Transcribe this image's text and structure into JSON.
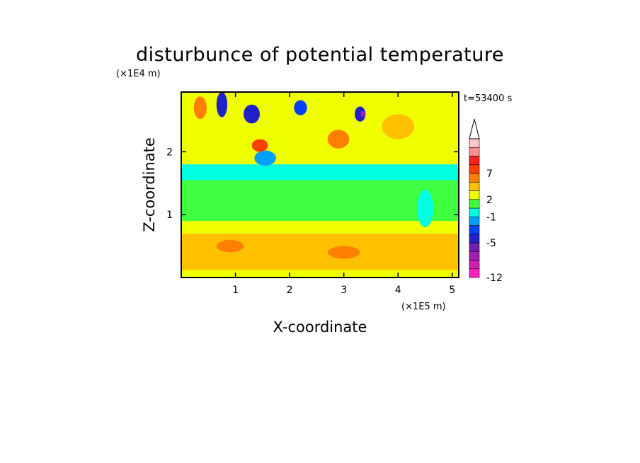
{
  "chart_data": {
    "type": "heatmap",
    "title": "disturbunce of potential temperature",
    "time_label": "t=53400 s",
    "xlabel": "X-coordinate",
    "ylabel": "Z-coordinate",
    "x_unit": "(×1E5 m)",
    "y_unit": "(×1E4 m)",
    "x_range": [
      0,
      5.12
    ],
    "y_range": [
      0,
      2.95
    ],
    "x_ticks": [
      {
        "value": 1,
        "label": "1"
      },
      {
        "value": 2,
        "label": "2"
      },
      {
        "value": 3,
        "label": "3"
      },
      {
        "value": 4,
        "label": "4"
      },
      {
        "value": 5,
        "label": "5"
      }
    ],
    "y_ticks": [
      {
        "value": 1,
        "label": "1"
      },
      {
        "value": 2,
        "label": "2"
      }
    ],
    "colorbar": {
      "levels": [
        {
          "color": "#ff20c0",
          "label": "-12"
        },
        {
          "color": "#d020b0",
          "label": ""
        },
        {
          "color": "#a020b0",
          "label": ""
        },
        {
          "color": "#7020b0",
          "label": ""
        },
        {
          "color": "#2020c8",
          "label": "-5"
        },
        {
          "color": "#0040ff",
          "label": ""
        },
        {
          "color": "#00a0ff",
          "label": ""
        },
        {
          "color": "#00ffe0",
          "label": "-1"
        },
        {
          "color": "#40ff40",
          "label": ""
        },
        {
          "color": "#f0ff00",
          "label": "2"
        },
        {
          "color": "#ffc000",
          "label": ""
        },
        {
          "color": "#ff8000",
          "label": ""
        },
        {
          "color": "#ff4000",
          "label": "7"
        },
        {
          "color": "#ff2020",
          "label": ""
        },
        {
          "color": "#ff9090",
          "label": ""
        },
        {
          "color": "#ffc8c8",
          "label": ""
        }
      ],
      "top_arrow_color": "#ffffff"
    },
    "field_bands": [
      {
        "z_range": [
          0.0,
          0.12
        ],
        "color": "#f0ff00"
      },
      {
        "z_range": [
          0.12,
          0.7
        ],
        "color": "#ffc000"
      },
      {
        "z_range": [
          0.7,
          0.9
        ],
        "color": "#f0ff00"
      },
      {
        "z_range": [
          0.9,
          1.55
        ],
        "color": "#40ff40"
      },
      {
        "z_range": [
          1.55,
          1.8
        ],
        "color": "#00ffe0"
      },
      {
        "z_range": [
          1.8,
          2.95
        ],
        "color": "#f0ff00"
      }
    ],
    "field_features": [
      {
        "x": 0.35,
        "z": 2.7,
        "rx": 0.12,
        "rz": 0.18,
        "color": "#ff8000"
      },
      {
        "x": 0.75,
        "z": 2.75,
        "rx": 0.1,
        "rz": 0.2,
        "color": "#2020c8"
      },
      {
        "x": 1.3,
        "z": 2.6,
        "rx": 0.15,
        "rz": 0.15,
        "color": "#2020c8"
      },
      {
        "x": 1.55,
        "z": 1.9,
        "rx": 0.2,
        "rz": 0.12,
        "color": "#00a0ff"
      },
      {
        "x": 2.2,
        "z": 2.7,
        "rx": 0.12,
        "rz": 0.12,
        "color": "#0040ff"
      },
      {
        "x": 3.3,
        "z": 2.6,
        "rx": 0.1,
        "rz": 0.12,
        "color": "#2020c8"
      },
      {
        "x": 3.35,
        "z": 2.6,
        "rx": 0.04,
        "rz": 0.05,
        "color": "#a020b0"
      },
      {
        "x": 2.9,
        "z": 2.2,
        "rx": 0.2,
        "rz": 0.15,
        "color": "#ff8000"
      },
      {
        "x": 1.45,
        "z": 2.1,
        "rx": 0.15,
        "rz": 0.1,
        "color": "#ff4000"
      },
      {
        "x": 4.0,
        "z": 2.4,
        "rx": 0.3,
        "rz": 0.2,
        "color": "#ffc000"
      },
      {
        "x": 0.9,
        "z": 0.5,
        "rx": 0.25,
        "rz": 0.1,
        "color": "#ff8000"
      },
      {
        "x": 3.0,
        "z": 0.4,
        "rx": 0.3,
        "rz": 0.1,
        "color": "#ff8000"
      },
      {
        "x": 4.5,
        "z": 1.1,
        "rx": 0.15,
        "rz": 0.3,
        "color": "#00ffe0"
      }
    ]
  }
}
